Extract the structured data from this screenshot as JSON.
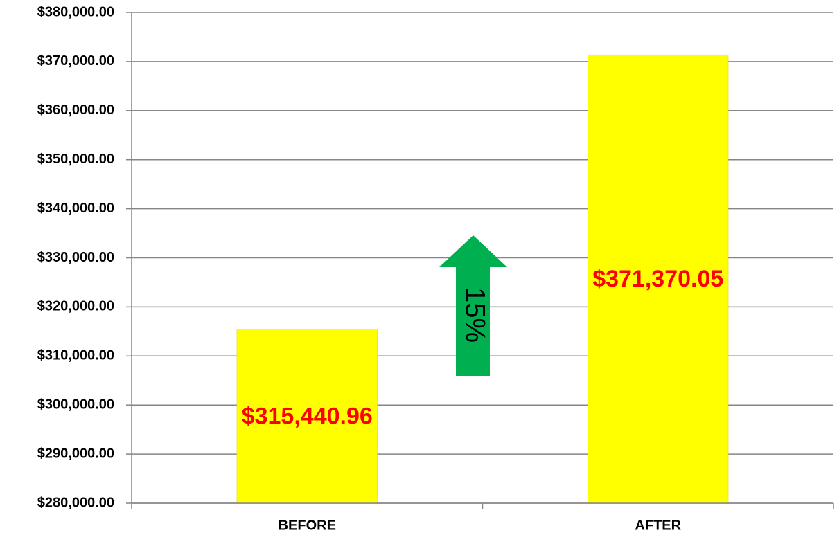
{
  "chart_data": {
    "type": "bar",
    "categories": [
      "BEFORE",
      "AFTER"
    ],
    "values": [
      315440.96,
      371370.05
    ],
    "value_labels": [
      "$315,440.96",
      "$371,370.05"
    ],
    "color": "#ffff00",
    "label_color": "#ff0000",
    "ylim": [
      280000,
      380000
    ],
    "yticks": [
      {
        "value": 280000,
        "label": "$280,000.00"
      },
      {
        "value": 290000,
        "label": "$290,000.00"
      },
      {
        "value": 300000,
        "label": "$300,000.00"
      },
      {
        "value": 310000,
        "label": "$310,000.00"
      },
      {
        "value": 320000,
        "label": "$320,000.00"
      },
      {
        "value": 330000,
        "label": "$330,000.00"
      },
      {
        "value": 340000,
        "label": "$340,000.00"
      },
      {
        "value": 350000,
        "label": "$350,000.00"
      },
      {
        "value": 360000,
        "label": "$360,000.00"
      },
      {
        "value": 370000,
        "label": "$370,000.00"
      },
      {
        "value": 380000,
        "label": "$380,000.00"
      }
    ],
    "grid": true,
    "annotation": "15%",
    "annotation_color": "#00b050"
  }
}
